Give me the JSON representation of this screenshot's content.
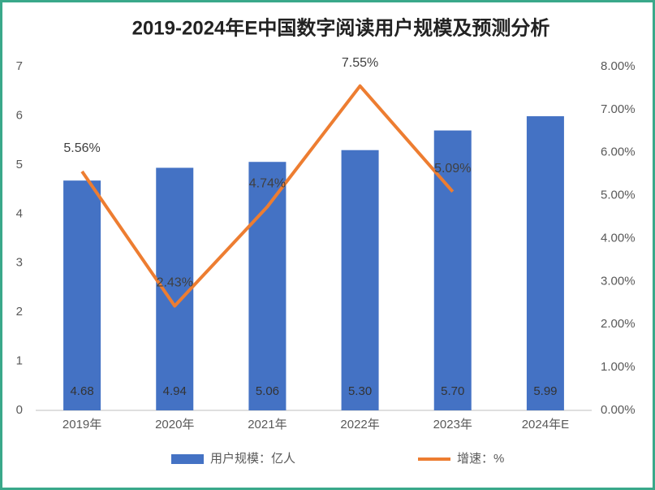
{
  "chart_data": {
    "type": "bar",
    "title": "2019-2024年E中国数字阅读用户规模及预测分析",
    "categories": [
      "2019年",
      "2020年",
      "2021年",
      "2022年",
      "2023年",
      "2024年E"
    ],
    "series": [
      {
        "name": "用户规模：亿人",
        "type": "bar",
        "color": "#4472c4",
        "values": [
          4.68,
          4.94,
          5.06,
          5.3,
          5.7,
          5.99
        ],
        "value_labels": [
          "4.68",
          "4.94",
          "5.06",
          "5.30",
          "5.70",
          "5.99"
        ]
      },
      {
        "name": "增速：%",
        "type": "line",
        "axis": "y2",
        "color": "#ed7d31",
        "values": [
          5.56,
          2.43,
          4.74,
          7.55,
          5.09,
          null
        ],
        "value_labels": [
          "5.56%",
          "2.43%",
          "4.74%",
          "7.55%",
          "5.09%",
          null
        ]
      }
    ],
    "ylim": [
      0,
      7
    ],
    "yticks": [
      0,
      1,
      2,
      3,
      4,
      5,
      6,
      7
    ],
    "y2lim": [
      0,
      8
    ],
    "y2ticks": [
      {
        "value": 0,
        "label": "0.00%"
      },
      {
        "value": 1,
        "label": "1.00%"
      },
      {
        "value": 2,
        "label": "2.00%"
      },
      {
        "value": 3,
        "label": "3.00%"
      },
      {
        "value": 4,
        "label": "4.00%"
      },
      {
        "value": 5,
        "label": "5.00%"
      },
      {
        "value": 6,
        "label": "6.00%"
      },
      {
        "value": 7,
        "label": "7.00%"
      },
      {
        "value": 8,
        "label": "8.00%"
      }
    ],
    "grid": false,
    "legend": "bottom"
  }
}
